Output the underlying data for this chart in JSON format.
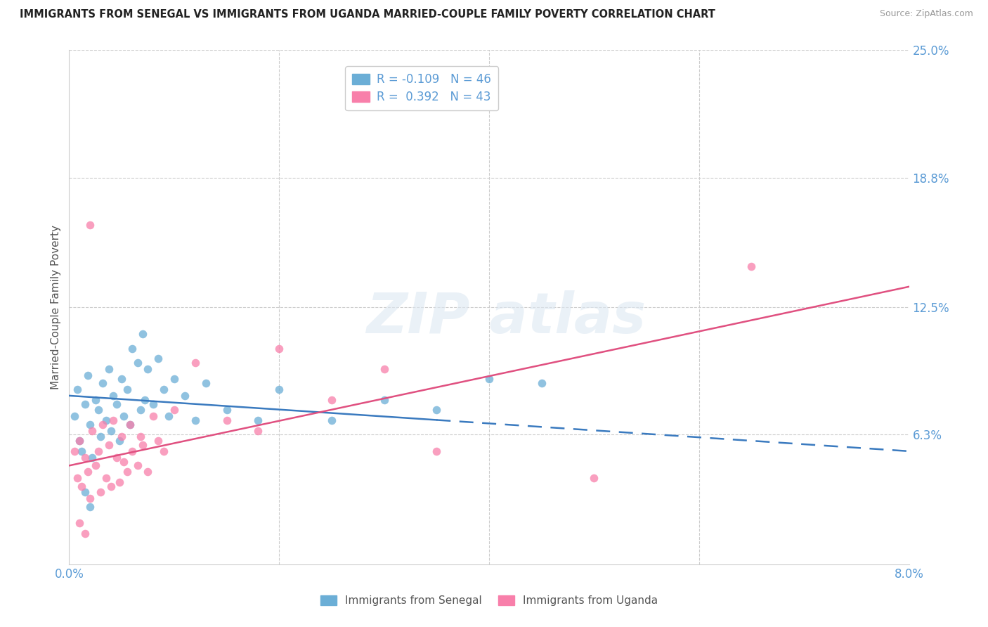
{
  "title": "IMMIGRANTS FROM SENEGAL VS IMMIGRANTS FROM UGANDA MARRIED-COUPLE FAMILY POVERTY CORRELATION CHART",
  "source": "Source: ZipAtlas.com",
  "xlabel_senegal": "Immigrants from Senegal",
  "xlabel_uganda": "Immigrants from Uganda",
  "ylabel": "Married-Couple Family Poverty",
  "xlim": [
    0.0,
    8.0
  ],
  "ylim": [
    0.0,
    25.0
  ],
  "ytick_vals": [
    6.3,
    12.5,
    18.8,
    25.0
  ],
  "ytick_labels": [
    "6.3%",
    "12.5%",
    "18.8%",
    "25.0%"
  ],
  "xtick_vals": [
    0.0,
    2.0,
    4.0,
    6.0,
    8.0
  ],
  "xtick_labels": [
    "0.0%",
    "",
    "",
    "",
    "8.0%"
  ],
  "senegal_color": "#6baed6",
  "uganda_color": "#f87faa",
  "senegal_R": -0.109,
  "senegal_N": 46,
  "uganda_R": 0.392,
  "uganda_N": 43,
  "senegal_line_color": "#3a7abf",
  "uganda_line_color": "#e05080",
  "background_color": "#ffffff",
  "grid_color": "#cccccc",
  "tick_color": "#5b9bd5",
  "senegal_points": [
    [
      0.05,
      7.2
    ],
    [
      0.08,
      8.5
    ],
    [
      0.1,
      6.0
    ],
    [
      0.12,
      5.5
    ],
    [
      0.15,
      7.8
    ],
    [
      0.18,
      9.2
    ],
    [
      0.2,
      6.8
    ],
    [
      0.22,
      5.2
    ],
    [
      0.25,
      8.0
    ],
    [
      0.28,
      7.5
    ],
    [
      0.3,
      6.2
    ],
    [
      0.32,
      8.8
    ],
    [
      0.35,
      7.0
    ],
    [
      0.38,
      9.5
    ],
    [
      0.4,
      6.5
    ],
    [
      0.42,
      8.2
    ],
    [
      0.45,
      7.8
    ],
    [
      0.48,
      6.0
    ],
    [
      0.5,
      9.0
    ],
    [
      0.52,
      7.2
    ],
    [
      0.55,
      8.5
    ],
    [
      0.58,
      6.8
    ],
    [
      0.6,
      10.5
    ],
    [
      0.65,
      9.8
    ],
    [
      0.68,
      7.5
    ],
    [
      0.7,
      11.2
    ],
    [
      0.72,
      8.0
    ],
    [
      0.75,
      9.5
    ],
    [
      0.8,
      7.8
    ],
    [
      0.85,
      10.0
    ],
    [
      0.9,
      8.5
    ],
    [
      0.95,
      7.2
    ],
    [
      1.0,
      9.0
    ],
    [
      1.1,
      8.2
    ],
    [
      1.2,
      7.0
    ],
    [
      1.3,
      8.8
    ],
    [
      1.5,
      7.5
    ],
    [
      1.8,
      7.0
    ],
    [
      2.0,
      8.5
    ],
    [
      2.5,
      7.0
    ],
    [
      3.0,
      8.0
    ],
    [
      3.5,
      7.5
    ],
    [
      4.0,
      9.0
    ],
    [
      4.5,
      8.8
    ],
    [
      0.15,
      3.5
    ],
    [
      0.2,
      2.8
    ]
  ],
  "uganda_points": [
    [
      0.05,
      5.5
    ],
    [
      0.08,
      4.2
    ],
    [
      0.1,
      6.0
    ],
    [
      0.12,
      3.8
    ],
    [
      0.15,
      5.2
    ],
    [
      0.18,
      4.5
    ],
    [
      0.2,
      3.2
    ],
    [
      0.22,
      6.5
    ],
    [
      0.25,
      4.8
    ],
    [
      0.28,
      5.5
    ],
    [
      0.3,
      3.5
    ],
    [
      0.32,
      6.8
    ],
    [
      0.35,
      4.2
    ],
    [
      0.38,
      5.8
    ],
    [
      0.4,
      3.8
    ],
    [
      0.42,
      7.0
    ],
    [
      0.45,
      5.2
    ],
    [
      0.48,
      4.0
    ],
    [
      0.5,
      6.2
    ],
    [
      0.52,
      5.0
    ],
    [
      0.55,
      4.5
    ],
    [
      0.58,
      6.8
    ],
    [
      0.6,
      5.5
    ],
    [
      0.65,
      4.8
    ],
    [
      0.68,
      6.2
    ],
    [
      0.7,
      5.8
    ],
    [
      0.75,
      4.5
    ],
    [
      0.8,
      7.2
    ],
    [
      0.85,
      6.0
    ],
    [
      0.9,
      5.5
    ],
    [
      1.0,
      7.5
    ],
    [
      1.2,
      9.8
    ],
    [
      1.5,
      7.0
    ],
    [
      1.8,
      6.5
    ],
    [
      2.0,
      10.5
    ],
    [
      2.5,
      8.0
    ],
    [
      3.0,
      9.5
    ],
    [
      3.5,
      5.5
    ],
    [
      5.0,
      4.2
    ],
    [
      6.5,
      14.5
    ],
    [
      0.2,
      16.5
    ],
    [
      0.1,
      2.0
    ],
    [
      0.15,
      1.5
    ]
  ],
  "senegal_line_x": [
    0.0,
    8.0
  ],
  "senegal_line_y": [
    8.2,
    5.5
  ],
  "uganda_line_x": [
    0.0,
    8.0
  ],
  "uganda_line_y": [
    4.8,
    13.5
  ],
  "watermark_text": "ZIPatlas"
}
